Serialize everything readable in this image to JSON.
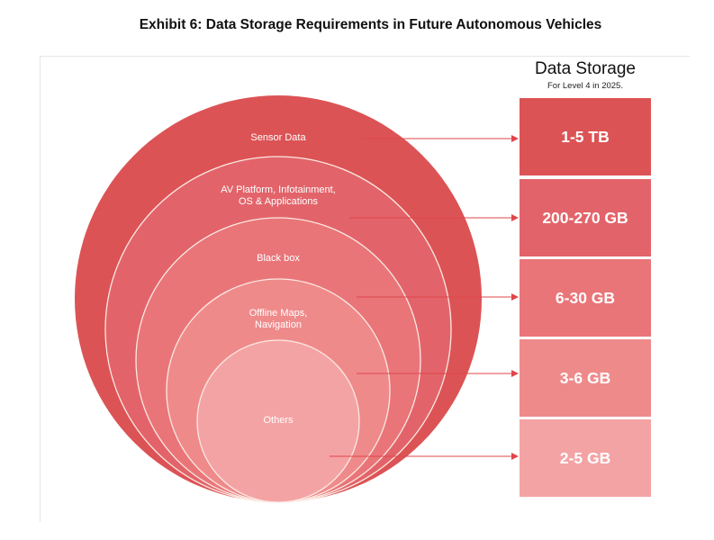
{
  "title": "Exhibit 6: Data Storage Requirements in Future Autonomous Vehicles",
  "legend": {
    "title": "Data Storage",
    "subtitle": "For Level 4 in 2025."
  },
  "colors": {
    "ring_fill": [
      "#dc5355",
      "#e2646a",
      "#e97579",
      "#ef8a8b",
      "#f4a3a4"
    ],
    "box_fill": [
      "#dc5355",
      "#e2646a",
      "#e97579",
      "#ef8a8b",
      "#f4a3a4"
    ],
    "arrow": "#e0454a",
    "ring_border": "#fbe9e2"
  },
  "categories": [
    {
      "label_lines": [
        "Sensor Data"
      ],
      "storage": "1-5 TB"
    },
    {
      "label_lines": [
        "AV Platform, Infotainment,",
        "OS & Applications"
      ],
      "storage": "200-270 GB"
    },
    {
      "label_lines": [
        "Black box"
      ],
      "storage": "6-30 GB"
    },
    {
      "label_lines": [
        "Offline Maps,",
        "Navigation"
      ],
      "storage": "3-6 GB"
    },
    {
      "label_lines": [
        "Others"
      ],
      "storage": "2-5 GB"
    }
  ]
}
